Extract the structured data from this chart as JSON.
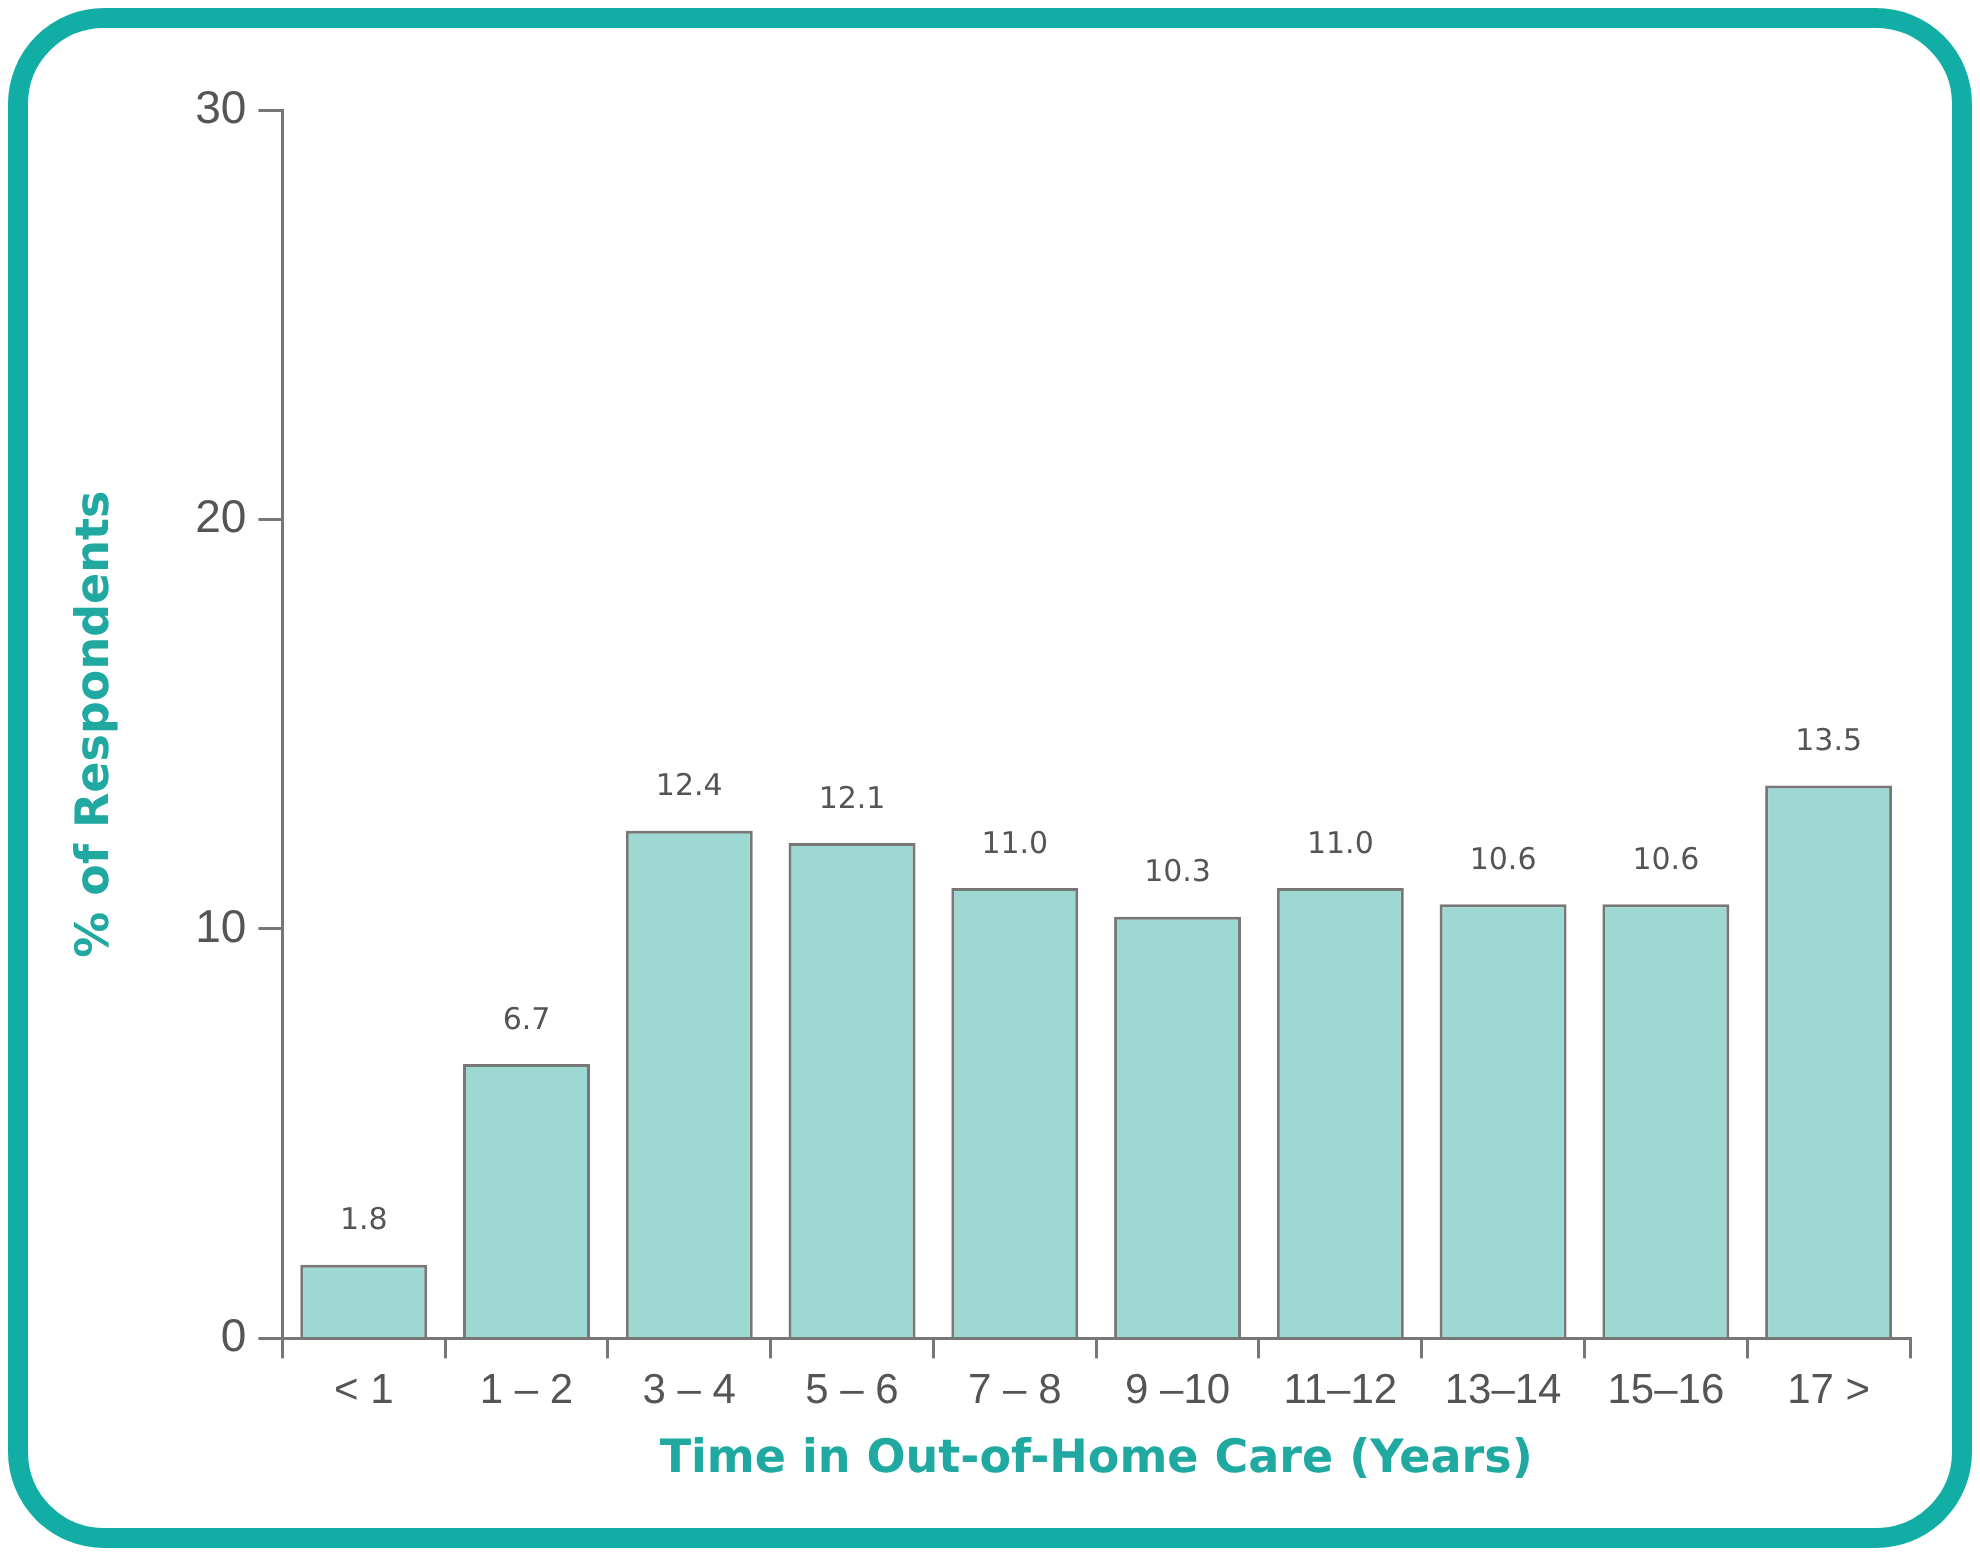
{
  "chart_data": {
    "type": "bar",
    "xlabel": "Time in Out-of-Home Care (Years)",
    "ylabel": "% of Respondents",
    "categories": [
      "< 1",
      "1 – 2",
      "3 – 4",
      "5 – 6",
      "7 – 8",
      "9 –10",
      "11–12",
      "13–14",
      "15–16",
      "17 >"
    ],
    "values": [
      1.8,
      6.7,
      12.4,
      12.1,
      11.0,
      10.3,
      11.0,
      10.6,
      10.6,
      13.5
    ],
    "value_labels": [
      "1.8",
      "6.7",
      "12.4",
      "12.1",
      "11.0",
      "10.3",
      "11.0",
      "10.6",
      "10.6",
      "13.5"
    ],
    "color": "#9ed8d2",
    "ylim": [
      0,
      30
    ],
    "yticks": [
      0,
      10,
      20,
      30
    ],
    "grid": false,
    "legend": false
  }
}
